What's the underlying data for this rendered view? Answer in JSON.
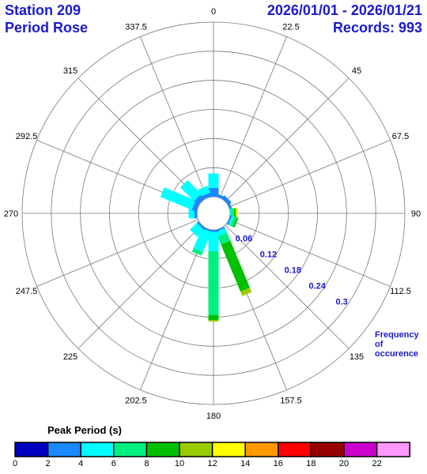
{
  "header": {
    "station": "Station 209",
    "subtitle": "Period Rose",
    "date_range": "2026/01/01 - 2026/01/21",
    "records": "Records: 993"
  },
  "legend": {
    "title": "Peak Period (s)",
    "ticks": [
      "0",
      "2",
      "4",
      "6",
      "8",
      "10",
      "12",
      "14",
      "16",
      "18",
      "20",
      "22"
    ],
    "colors": [
      "#0000c0",
      "#1a88ff",
      "#00ffff",
      "#00f080",
      "#00c000",
      "#99cc00",
      "#ffff00",
      "#ff9900",
      "#ff0000",
      "#990000",
      "#cc00cc",
      "#ff99ff"
    ]
  },
  "chart_data": {
    "type": "polar-stacked-bar",
    "title": "Period Rose",
    "directions": [
      "0",
      "22.5",
      "45",
      "67.5",
      "90",
      "112.5",
      "135",
      "157.5",
      "180",
      "202.5",
      "225",
      "247.5",
      "270",
      "292.5",
      "315",
      "337.5"
    ],
    "ring_labels": [
      "0.06",
      "0.12",
      "0.18",
      "0.24",
      "0.3"
    ],
    "rmax": 0.36,
    "radial_label": "Frequency of occurence",
    "period_bins": [
      "0-2",
      "2-4",
      "4-6",
      "6-8",
      "8-10",
      "10-12",
      "12-14",
      "14-16",
      "16-18",
      "18-20",
      "20-22",
      "22+"
    ],
    "series": [
      {
        "direction": 0,
        "values": [
          0,
          0.018,
          0.03,
          0,
          0,
          0,
          0,
          0,
          0,
          0,
          0,
          0
        ]
      },
      {
        "direction": 22.5,
        "values": [
          0,
          0.006,
          0,
          0,
          0,
          0,
          0,
          0,
          0,
          0,
          0,
          0
        ]
      },
      {
        "direction": 45,
        "values": [
          0,
          0.008,
          0,
          0,
          0,
          0,
          0,
          0,
          0,
          0,
          0,
          0
        ]
      },
      {
        "direction": 67.5,
        "values": [
          0,
          0.005,
          0,
          0,
          0,
          0,
          0,
          0,
          0,
          0,
          0,
          0
        ]
      },
      {
        "direction": 90,
        "values": [
          0,
          0,
          0.002,
          0.006,
          0.003,
          0.002,
          0.003,
          0,
          0,
          0,
          0,
          0
        ]
      },
      {
        "direction": 112.5,
        "values": [
          0,
          0.003,
          0.004,
          0.006,
          0.004,
          0,
          0,
          0,
          0,
          0,
          0,
          0
        ]
      },
      {
        "direction": 135,
        "values": [
          0,
          0,
          0,
          0,
          0,
          0,
          0,
          0,
          0,
          0,
          0,
          0
        ]
      },
      {
        "direction": 157.5,
        "values": [
          0,
          0.003,
          0.01,
          0.018,
          0.105,
          0.01,
          0,
          0,
          0,
          0,
          0,
          0
        ]
      },
      {
        "direction": 180,
        "values": [
          0,
          0.004,
          0.04,
          0.132,
          0.01,
          0.003,
          0,
          0,
          0,
          0,
          0,
          0
        ]
      },
      {
        "direction": 202.5,
        "values": [
          0,
          0.003,
          0.045,
          0.008,
          0,
          0,
          0,
          0,
          0,
          0,
          0,
          0
        ]
      },
      {
        "direction": 225,
        "values": [
          0,
          0.004,
          0.02,
          0,
          0,
          0,
          0,
          0,
          0,
          0,
          0,
          0
        ]
      },
      {
        "direction": 247.5,
        "values": [
          0,
          0,
          0,
          0,
          0,
          0,
          0,
          0,
          0,
          0,
          0,
          0
        ]
      },
      {
        "direction": 270,
        "values": [
          0,
          0.005,
          0.012,
          0,
          0,
          0,
          0,
          0,
          0,
          0,
          0,
          0
        ]
      },
      {
        "direction": 292.5,
        "values": [
          0,
          0.01,
          0.07,
          0,
          0,
          0,
          0,
          0,
          0,
          0,
          0,
          0
        ]
      },
      {
        "direction": 315,
        "values": [
          0,
          0.012,
          0.04,
          0,
          0,
          0,
          0,
          0,
          0,
          0,
          0,
          0
        ]
      },
      {
        "direction": 337.5,
        "values": [
          0,
          0.008,
          0.015,
          0,
          0,
          0,
          0,
          0,
          0,
          0,
          0,
          0
        ]
      }
    ]
  }
}
